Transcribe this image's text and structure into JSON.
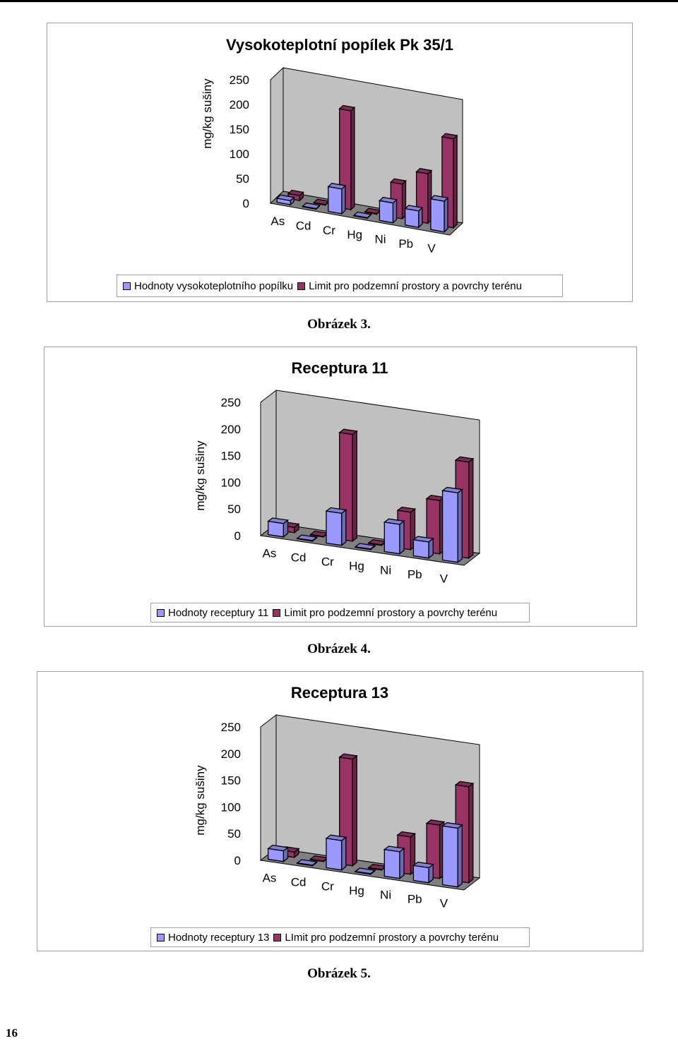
{
  "page_number": "16",
  "colors": {
    "series_values": "#9999ff",
    "series_limit": "#993366",
    "wall": "#c0c0c0",
    "floor": "#808080"
  },
  "chart_data": [
    {
      "type": "bar",
      "title": "Vysokoteplotní popílek Pk 35/1",
      "ylabel": "mg/kg sušiny",
      "xlabel": "",
      "categories": [
        "As",
        "Cd",
        "Cr",
        "Hg",
        "Ni",
        "Pb",
        "V"
      ],
      "yticks": [
        "0",
        "50",
        "100",
        "150",
        "200",
        "250"
      ],
      "ylim": [
        0,
        250
      ],
      "legend_position": "bottom",
      "series": [
        {
          "name": "Hodnoty vysokoteplotního popílku",
          "values": [
            8,
            1,
            50,
            1,
            40,
            33,
            62
          ]
        },
        {
          "name": "Limit pro podzemní prostory a povrchy terénu",
          "values": [
            10,
            1,
            200,
            1,
            70,
            100,
            180
          ]
        }
      ],
      "caption": "Obrázek 3."
    },
    {
      "type": "bar",
      "title": "Receptura 11",
      "ylabel": "mg/kg sušiny",
      "xlabel": "",
      "categories": [
        "As",
        "Cd",
        "Cr",
        "Hg",
        "Ni",
        "Pb",
        "V"
      ],
      "yticks": [
        "0",
        "50",
        "100",
        "150",
        "200",
        "250"
      ],
      "ylim": [
        0,
        250
      ],
      "legend_position": "bottom",
      "series": [
        {
          "name": "Hodnoty receptury 11",
          "values": [
            25,
            1,
            60,
            1,
            55,
            30,
            130
          ]
        },
        {
          "name": "Limit pro podzemní prostory a povrchy terénu",
          "values": [
            10,
            1,
            200,
            1,
            70,
            100,
            180
          ]
        }
      ],
      "caption": "Obrázek 4."
    },
    {
      "type": "bar",
      "title": "Receptura 13",
      "ylabel": "mg/kg sušiny",
      "xlabel": "",
      "categories": [
        "As",
        "Cd",
        "Cr",
        "Hg",
        "Ni",
        "Pb",
        "V"
      ],
      "yticks": [
        "0",
        "50",
        "100",
        "150",
        "200",
        "250"
      ],
      "ylim": [
        0,
        250
      ],
      "legend_position": "bottom",
      "series": [
        {
          "name": "Hodnoty receptury 13",
          "values": [
            20,
            1,
            55,
            1,
            50,
            28,
            110
          ]
        },
        {
          "name": "LImit pro podzemní prostory a povrchy terénu",
          "values": [
            10,
            1,
            200,
            1,
            70,
            100,
            180
          ]
        }
      ],
      "caption": "Obrázek 5."
    }
  ]
}
